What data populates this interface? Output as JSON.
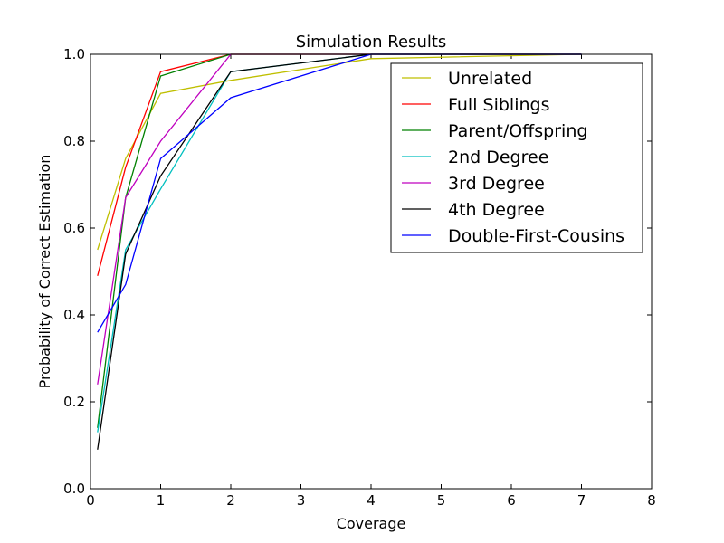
{
  "chart_data": {
    "type": "line",
    "title": "Simulation Results",
    "xlabel": "Coverage",
    "ylabel": "Probability of Correct Estimation",
    "xlim": [
      0,
      8
    ],
    "ylim": [
      0,
      1
    ],
    "xticks": [
      "0",
      "1",
      "2",
      "3",
      "4",
      "5",
      "6",
      "7",
      "8"
    ],
    "yticks": [
      "0.0",
      "0.2",
      "0.4",
      "0.6",
      "0.8",
      "1.0"
    ],
    "grid": false,
    "legend_position": "top-right",
    "x": [
      0.1,
      0.5,
      1,
      2,
      4,
      7
    ],
    "series": [
      {
        "name": "Unrelated",
        "color": "#bfbf00",
        "values": [
          0.55,
          0.76,
          0.91,
          0.94,
          0.99,
          1.0
        ]
      },
      {
        "name": "Full Siblings",
        "color": "#ff0000",
        "values": [
          0.49,
          0.74,
          0.96,
          1.0,
          1.0,
          1.0
        ]
      },
      {
        "name": "Parent/Offspring",
        "color": "#008000",
        "values": [
          0.14,
          0.67,
          0.95,
          1.0,
          1.0,
          1.0
        ]
      },
      {
        "name": "2nd Degree",
        "color": "#00bfbf",
        "values": [
          0.13,
          0.55,
          0.69,
          0.96,
          1.0,
          1.0
        ]
      },
      {
        "name": "3rd Degree",
        "color": "#bf00bf",
        "values": [
          0.24,
          0.67,
          0.8,
          1.0,
          1.0,
          1.0
        ]
      },
      {
        "name": "4th Degree",
        "color": "#000000",
        "values": [
          0.09,
          0.54,
          0.72,
          0.96,
          1.0,
          1.0
        ]
      },
      {
        "name": "Double-First-Cousins",
        "color": "#0000ff",
        "values": [
          0.36,
          0.47,
          0.76,
          0.9,
          1.0,
          1.0
        ]
      }
    ]
  }
}
